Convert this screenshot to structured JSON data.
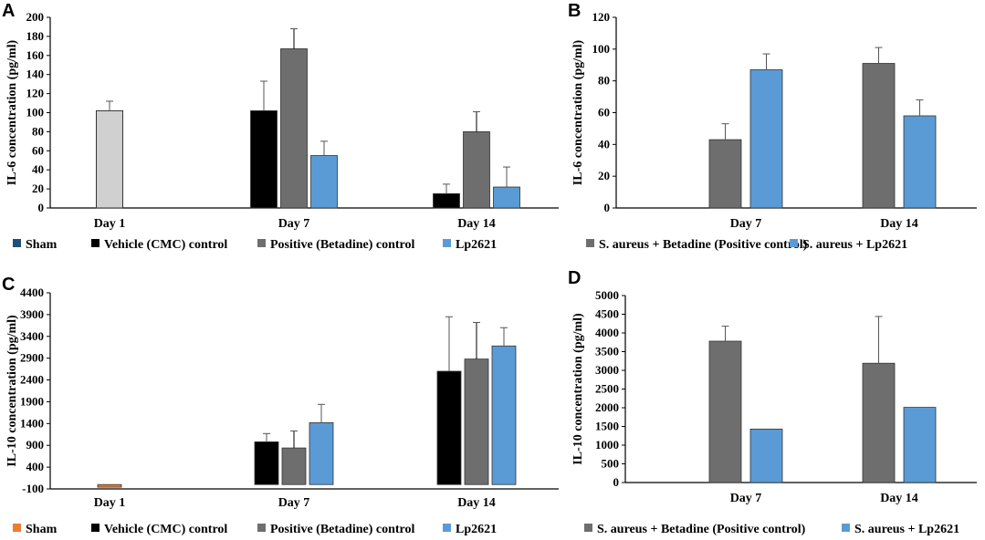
{
  "colors": {
    "Sham": "#d0d0d0",
    "Sham_legend_A": "#1f4e79",
    "Sham_legend_C": "#ed7d31",
    "Vehicle": "#000000",
    "Positive": "#6e6e6e",
    "Lp": "#5b9bd5"
  },
  "chart_data": [
    {
      "id": "A",
      "type": "bar",
      "letter": "A",
      "ylabel": "IL-6 concentration (pg/ml)",
      "ylim": [
        0,
        200
      ],
      "yticks": [
        0,
        20,
        40,
        60,
        80,
        100,
        120,
        140,
        160,
        180,
        200
      ],
      "categories": [
        "Day 1",
        "Day 7",
        "Day 14"
      ],
      "series": [
        {
          "name": "Sham",
          "legend": "Sham",
          "values": [
            102,
            null,
            null
          ],
          "errors": [
            10,
            null,
            null
          ]
        },
        {
          "name": "Vehicle",
          "legend": "Vehicle (CMC) control",
          "values": [
            null,
            102,
            15
          ],
          "errors": [
            null,
            31,
            10
          ]
        },
        {
          "name": "Positive",
          "legend": "Positive (Betadine) control",
          "values": [
            null,
            167,
            80
          ],
          "errors": [
            null,
            21,
            21
          ]
        },
        {
          "name": "Lp",
          "legend": "Lp2621",
          "values": [
            null,
            55,
            22
          ],
          "errors": [
            null,
            15,
            21
          ]
        }
      ]
    },
    {
      "id": "B",
      "type": "bar",
      "letter": "B",
      "ylabel": "IL-6 concentration (pg/ml)",
      "ylim": [
        0,
        120
      ],
      "yticks": [
        0,
        20,
        40,
        60,
        80,
        100,
        120
      ],
      "categories": [
        "Day 7",
        "Day 14"
      ],
      "series": [
        {
          "name": "Positive",
          "legend": "S. aureus + Betadine (Positive control)",
          "values": [
            43,
            91
          ],
          "errors": [
            10,
            10
          ]
        },
        {
          "name": "Lp",
          "legend": "S. aureus + Lp2621",
          "values": [
            87,
            58
          ],
          "errors": [
            10,
            10
          ]
        }
      ]
    },
    {
      "id": "C",
      "type": "bar",
      "letter": "C",
      "ylabel": "IL-10 concentration (pg/ml)",
      "ylim": [
        -100,
        4400
      ],
      "yticks": [
        -100,
        400,
        900,
        1400,
        1900,
        2400,
        2900,
        3400,
        3900,
        4400
      ],
      "categories": [
        "Day 1",
        "Day 7",
        "Day 14"
      ],
      "series": [
        {
          "name": "Sham",
          "legend": "Sham",
          "values": [
            -60,
            null,
            null
          ],
          "errors": [
            null,
            null,
            null
          ]
        },
        {
          "name": "Vehicle",
          "legend": "Vehicle (CMC) control",
          "values": [
            null,
            980,
            2600
          ],
          "errors": [
            null,
            190,
            1250
          ]
        },
        {
          "name": "Positive",
          "legend": "Positive (Betadine) control",
          "values": [
            null,
            840,
            2880
          ],
          "errors": [
            null,
            390,
            840
          ]
        },
        {
          "name": "Lp",
          "legend": "Lp2621",
          "values": [
            null,
            1420,
            3180
          ],
          "errors": [
            null,
            420,
            420
          ]
        }
      ]
    },
    {
      "id": "D",
      "type": "bar",
      "letter": "D",
      "ylabel": "IL-10 concentration (pg/ml)",
      "ylim": [
        0,
        5000
      ],
      "yticks": [
        0,
        500,
        1000,
        1500,
        2000,
        2500,
        3000,
        3500,
        4000,
        4500,
        5000
      ],
      "categories": [
        "Day 7",
        "Day 14"
      ],
      "series": [
        {
          "name": "Positive",
          "legend": "S. aureus + Betadine (Positive control)",
          "values": [
            3780,
            3190
          ],
          "errors": [
            400,
            1250
          ]
        },
        {
          "name": "Lp",
          "legend": "S. aureus + Lp2621",
          "values": [
            1430,
            2010
          ],
          "errors": [
            0,
            0
          ]
        }
      ]
    }
  ]
}
